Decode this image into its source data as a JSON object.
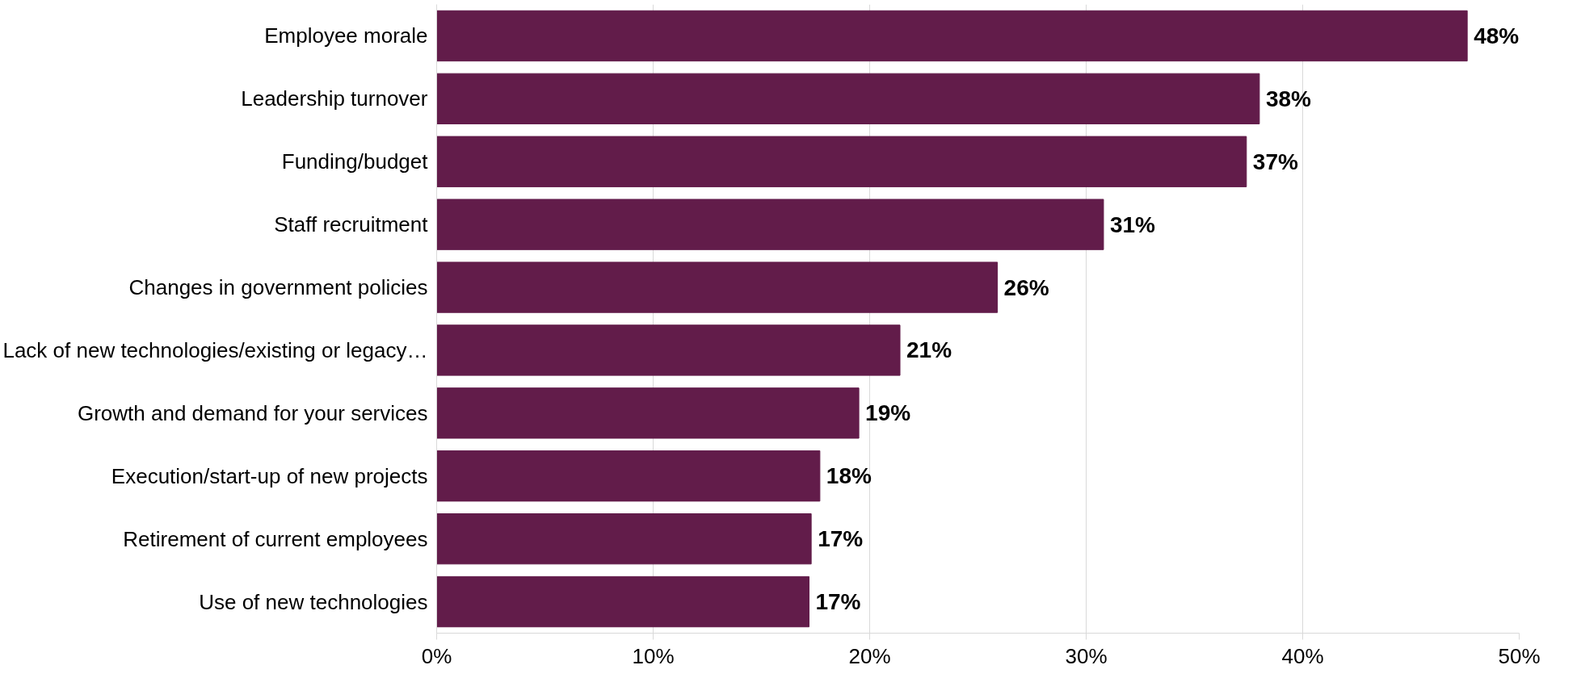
{
  "chart_data": {
    "type": "bar",
    "orientation": "horizontal",
    "categories": [
      "Employee morale",
      "Leadership turnover",
      "Funding/budget",
      "Staff recruitment",
      "Changes in government policies",
      "Lack of new technologies/existing or legacy…",
      "Growth and demand for your services",
      "Execution/start-up of new projects",
      "Retirement of current employees",
      "Use of new technologies"
    ],
    "values": [
      47.6,
      38,
      37.4,
      30.8,
      25.9,
      21.4,
      19.5,
      17.7,
      17.3,
      17.2
    ],
    "value_labels": [
      "48%",
      "38%",
      "37%",
      "31%",
      "26%",
      "21%",
      "19%",
      "18%",
      "17%",
      "17%"
    ],
    "color": "#621c4a",
    "xlim": [
      0,
      50
    ],
    "xticks": [
      {
        "value": 0,
        "label": "0%"
      },
      {
        "value": 10,
        "label": "10%"
      },
      {
        "value": 20,
        "label": "20%"
      },
      {
        "value": 30,
        "label": "30%"
      },
      {
        "value": 40,
        "label": "40%"
      },
      {
        "value": 50,
        "label": "50%"
      }
    ],
    "grid": "x"
  }
}
